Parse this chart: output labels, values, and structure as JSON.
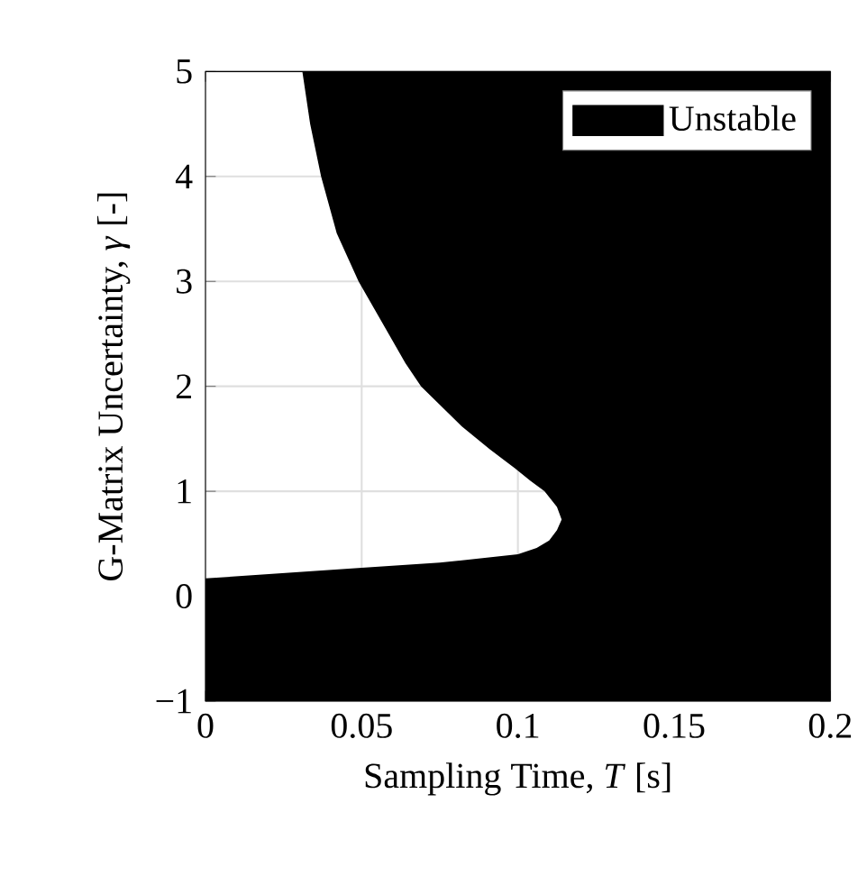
{
  "chart_data": {
    "type": "area",
    "xlabel": "Sampling Time, *T* [s]",
    "ylabel": "G-Matrix Uncertainty, *γ* [-]",
    "series": [
      {
        "name": "Unstable",
        "color": "#000000",
        "x": [
          0.2,
          0,
          0,
          0.05,
          0.075,
          0.1,
          0.106,
          0.11,
          0.1125,
          0.114,
          0.1125,
          0.1085,
          0.104,
          0.099,
          0.091,
          0.082,
          0.069,
          0.064,
          0.059,
          0.049,
          0.042,
          0.037,
          0.0335,
          0.031,
          0.2
        ],
        "values": [
          -1,
          -1,
          0.17,
          0.27,
          0.32,
          0.4,
          0.46,
          0.53,
          0.63,
          0.73,
          0.85,
          1.0,
          1.1,
          1.22,
          1.4,
          1.62,
          2.0,
          2.22,
          2.48,
          3.0,
          3.46,
          4.0,
          4.5,
          5.0,
          5.0
        ]
      }
    ],
    "xlim": [
      0,
      0.2
    ],
    "ylim": [
      -1,
      5
    ],
    "xticks": [
      0,
      0.05,
      0.1,
      0.15,
      0.2
    ],
    "yticks": [
      {
        "value": -1,
        "label": "−1"
      },
      0,
      1,
      2,
      3,
      4,
      5
    ],
    "grid": true,
    "legend": "top right"
  }
}
